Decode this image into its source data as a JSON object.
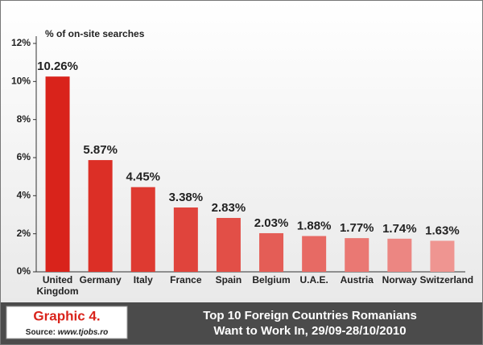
{
  "chart_data": {
    "type": "bar",
    "title": [
      "Top 10 Foreign Countries Romanians",
      "Want to Work In, 29/09-28/10/2010"
    ],
    "ylabel": "% of on-site searches",
    "graphic_label": "Graphic 4.",
    "source_label": "Source:",
    "source": "www.tjobs.ro",
    "categories": [
      "United Kingdom",
      "Germany",
      "Italy",
      "France",
      "Spain",
      "Belgium",
      "U.A.E.",
      "Austria",
      "Norway",
      "Switzerland"
    ],
    "values": [
      10.26,
      5.87,
      4.45,
      3.38,
      2.83,
      2.03,
      1.88,
      1.77,
      1.74,
      1.63
    ],
    "value_labels": [
      "10.26%",
      "5.87%",
      "4.45%",
      "3.38%",
      "2.83%",
      "2.03%",
      "1.88%",
      "1.77%",
      "1.74%",
      "1.63%"
    ],
    "colors": [
      "#d9231b",
      "#dc2f26",
      "#de3a31",
      "#e0443c",
      "#e24f47",
      "#e45d56",
      "#e76a64",
      "#ea7873",
      "#ec8682",
      "#ef9591"
    ],
    "ylim": [
      0,
      12
    ],
    "yticks": [
      {
        "value": 0,
        "label": "0%"
      },
      {
        "value": 2,
        "label": "2%"
      },
      {
        "value": 4,
        "label": "4%"
      },
      {
        "value": 6,
        "label": "6%"
      },
      {
        "value": 8,
        "label": "8%"
      },
      {
        "value": 10,
        "label": "10%"
      },
      {
        "value": 12,
        "label": "12%"
      }
    ],
    "grid": false
  }
}
